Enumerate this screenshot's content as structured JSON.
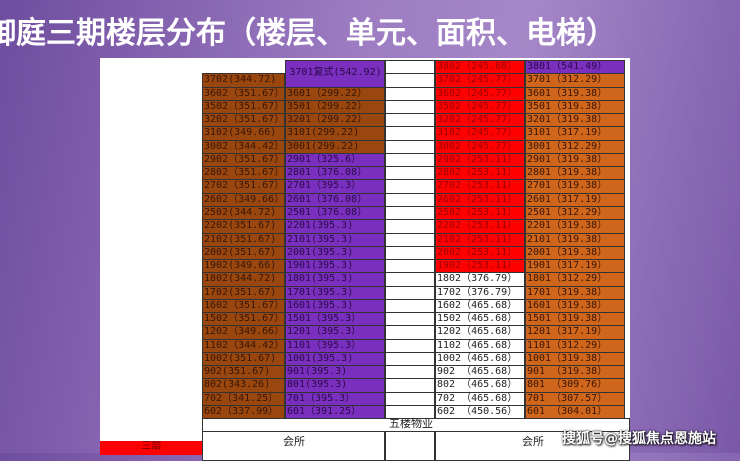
{
  "title": "御庭三期楼层分布（楼层、单元、面积、电梯）",
  "colors": {
    "brown": "#99470f",
    "purple": "#7b2fbe",
    "red": "#ff0000",
    "orange": "#d0661c"
  },
  "left": {
    "top_duplex": "3701复式(542.92)",
    "rows": [
      [
        "3702(344.72)",
        "—"
      ],
      [
        "3602（351.67）",
        "3601（299.22）"
      ],
      [
        "3502（351.67）",
        "3501（299.22）"
      ],
      [
        "3202（351.67）",
        "3201（299.22）"
      ],
      [
        "3102(349.66)",
        "3101(299.22)"
      ],
      [
        "3002（344.42）",
        "3001(299.22)"
      ],
      [
        "2902（351.67）",
        "2901（325.6）"
      ],
      [
        "2802（351.67）",
        "2801（376.08）"
      ],
      [
        "2702（351.67）",
        "2701（395.3）"
      ],
      [
        "2602（349.66）",
        "2601（376.08）"
      ],
      [
        "2502(344.72)",
        "2501（376.08）"
      ],
      [
        "2202(351.67)",
        "2201(395.3)"
      ],
      [
        "2102(351.67)",
        "2101(395.3)"
      ],
      [
        "2002(351.67)",
        "2001(395.3)"
      ],
      [
        "1902(349.66)",
        "1901(395.3)"
      ],
      [
        "1802(344.72)",
        "1801(395.3)"
      ],
      [
        "1702(351.67)",
        "1701(395.3)"
      ],
      [
        "1602（351.67）",
        "1601(395.3)"
      ],
      [
        "1502（351.67）",
        "1501（395.3）"
      ],
      [
        "1202（349.66）",
        "1201（395.3）"
      ],
      [
        "1102（344.42）",
        "1101（395.3）"
      ],
      [
        "1002(351.67)",
        "1001(395.3)"
      ],
      [
        "902(351.67)",
        "901(395.3)"
      ],
      [
        "802(343.26)",
        "801(395.3)"
      ],
      [
        "702（341.25）",
        "701（395.3）"
      ],
      [
        "602（337.99）",
        "601（391.25）"
      ]
    ]
  },
  "right": {
    "top_row": [
      "3802（245.88）",
      "3801（541.49）"
    ],
    "rows": [
      [
        "3702（245.77）",
        "3701（312.29）"
      ],
      [
        "3602（245.77）",
        "3601（319.38）"
      ],
      [
        "3502（245.77）",
        "3501（319.38）"
      ],
      [
        "3202（245.77）",
        "3201（319.38）"
      ],
      [
        "3102（245.77）",
        "3101（317.19）"
      ],
      [
        "3002（245.77）",
        "3001（312.29）"
      ],
      [
        "2902（253.11）",
        "2901（319.38）"
      ],
      [
        "2802（253.11）",
        "2801（319.38）"
      ],
      [
        "2702（253.11）",
        "2701（319.38）"
      ],
      [
        "2602（253.11）",
        "2601（317.19）"
      ],
      [
        "2502（253.11）",
        "2501（312.29）"
      ],
      [
        "2202（253.11）",
        "2201（319.38）"
      ],
      [
        "2102（253.11）",
        "2101（319.38）"
      ],
      [
        "2002（253.11）",
        "2001（319.38）"
      ],
      [
        "1902（253.11）",
        "1901（317.19）"
      ],
      [
        "1802（376.79）",
        "1801（312.29）"
      ],
      [
        "1702（376.79）",
        "1701（319.38）"
      ],
      [
        "1602（465.68）",
        "1601（319.38）"
      ],
      [
        "1502（465.68）",
        "1501（319.38）"
      ],
      [
        "1202（465.68）",
        "1201（317.19）"
      ],
      [
        "1102（465.68）",
        "1101（312.29）"
      ],
      [
        "1002（465.68）",
        "1001（319.38）"
      ],
      [
        "902 （465.68）",
        "901 （319.38）"
      ],
      [
        "802 （465.68）",
        "801 （309.76）"
      ],
      [
        "702 （465.68）",
        "701 （307.57）"
      ],
      [
        "602 （450.56）",
        "601 （304.01）"
      ]
    ],
    "red_rows_count": 15
  },
  "footer": {
    "property": "五楼物业",
    "club_left": "会所",
    "club_right": "会所",
    "floor3": "三层"
  },
  "watermark": "搜狐号@搜狐焦点恩施站"
}
